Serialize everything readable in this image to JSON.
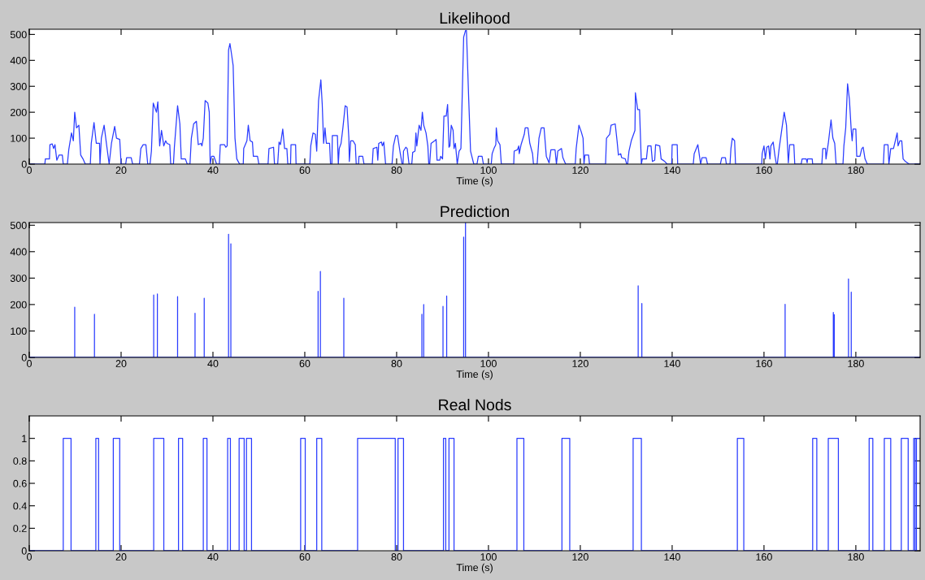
{
  "chart_data": [
    {
      "type": "line",
      "title": "Likelihood",
      "xlabel": "Time (s)",
      "xlim": [
        0,
        194
      ],
      "xticks": [
        0,
        20,
        40,
        60,
        80,
        100,
        120,
        140,
        160,
        180
      ],
      "ylim": [
        0,
        520
      ],
      "yticks": [
        0,
        100,
        200,
        300,
        400,
        500
      ],
      "grid": false,
      "series": [
        {
          "color": "#2a3cff",
          "x": [
            0,
            3.4,
            3.5,
            4.4,
            4.5,
            5.0,
            5.3,
            5.6,
            6.0,
            6.5,
            7.2,
            7.4,
            8.3,
            8.6,
            9.2,
            9.6,
            9.9,
            10.3,
            10.8,
            11.2,
            11.7,
            12.2,
            13.3,
            13.5,
            14.1,
            14.6,
            15.3,
            15.4,
            15.7,
            16.3,
            16.8,
            17.4,
            17.9,
            18.6,
            19.0,
            19.7,
            20.0,
            21.0,
            21.2,
            22.2,
            22.5,
            24.0,
            24.3,
            24.8,
            25.4,
            25.8,
            26.3,
            26.6,
            27.0,
            27.7,
            28.0,
            28.4,
            28.8,
            29.3,
            29.7,
            30.0,
            30.6,
            30.8,
            31.4,
            31.6,
            32.3,
            32.8,
            33.1,
            34.0,
            34.4,
            35.0,
            35.3,
            35.8,
            36.4,
            36.8,
            37.4,
            37.6,
            37.9,
            38.3,
            38.9,
            39.2,
            39.4,
            39.7,
            40.2,
            40.8,
            41.4,
            41.6,
            42.5,
            42.8,
            43.1,
            43.4,
            43.7,
            44.0,
            44.4,
            44.8,
            45.2,
            45.8,
            46.6,
            46.7,
            47.4,
            47.7,
            48.1,
            48.6,
            48.8,
            49.7,
            50.0,
            52.0,
            52.2,
            53.2,
            53.4,
            54.1,
            54.4,
            54.7,
            55.2,
            55.6,
            56.1,
            56.3,
            56.9,
            57.0,
            58.0,
            58.1,
            61.1,
            61.3,
            61.8,
            62.3,
            62.6,
            63.0,
            63.5,
            63.8,
            64.1,
            64.4,
            64.7,
            65.4,
            65.6,
            65.9,
            66.0,
            67.1,
            67.3,
            67.5,
            67.9,
            68.3,
            68.8,
            69.2,
            69.6,
            69.7,
            70.0,
            70.5,
            71.0,
            71.2,
            71.7,
            71.8,
            72.6,
            72.9,
            74.7,
            74.9,
            75.7,
            75.9,
            76.1,
            76.7,
            76.9,
            77.2,
            77.6,
            79.0,
            79.3,
            79.8,
            80.2,
            80.8,
            81.2,
            81.4,
            81.5,
            82.0,
            82.3,
            82.7,
            83.3,
            83.5,
            84.0,
            84.2,
            84.4,
            84.9,
            85.3,
            85.6,
            85.9,
            86.4,
            86.8,
            87.0,
            87.2,
            87.5,
            88.3,
            88.6,
            88.8,
            89.4,
            89.6,
            90.0,
            90.3,
            90.8,
            91.1,
            91.4,
            91.6,
            91.9,
            92.3,
            92.5,
            92.8,
            93.2,
            93.6,
            94.0,
            94.6,
            95.0,
            95.2,
            95.7,
            96.1,
            96.8,
            97.5,
            97.8,
            98.6,
            98.9,
            100.6,
            100.8,
            101.2,
            101.6,
            101.7,
            102.0,
            102.5,
            102.8,
            105.5,
            105.6,
            106.3,
            106.6,
            106.7,
            107.1,
            107.8,
            108.0,
            108.6,
            109.0,
            109.6,
            109.8,
            110.6,
            111.0,
            111.5,
            112.1,
            112.6,
            113.2,
            113.6,
            114.5,
            114.8,
            115.1,
            115.9,
            116.2,
            116.8,
            118.9,
            119.1,
            119.7,
            120.2,
            120.6,
            120.8,
            121.0,
            121.8,
            122.0,
            125.5,
            125.7,
            126.4,
            126.7,
            127.6,
            128.0,
            128.3,
            128.8,
            129.0,
            129.8,
            130.1,
            130.3,
            130.6,
            131.1,
            131.9,
            132.0,
            132.5,
            132.9,
            133.3,
            133.5,
            134.4,
            134.7,
            135.4,
            135.7,
            136.2,
            136.4,
            137.3,
            137.6,
            138.4,
            138.9,
            139.9,
            140.0,
            141.1,
            141.2,
            144.6,
            144.8,
            145.6,
            146.2,
            146.5,
            147.4,
            147.7,
            150.5,
            150.8,
            151.6,
            151.8,
            152.6,
            152.8,
            153.1,
            153.6,
            153.8,
            159.5,
            159.6,
            160.0,
            160.3,
            160.6,
            161.0,
            161.3,
            161.5,
            162.0,
            162.4,
            162.7,
            162.9,
            163.3,
            164.4,
            164.9,
            165.3,
            165.6,
            166.5,
            166.7,
            168.1,
            168.3,
            169.2,
            169.4,
            169.5,
            170.5,
            170.6,
            172.6,
            172.8,
            173.4,
            173.5,
            174.0,
            174.6,
            175.0,
            175.4,
            175.7,
            177.2,
            177.4,
            177.8,
            178.2,
            178.6,
            179.0,
            179.2,
            179.4,
            180.0,
            180.2,
            180.9,
            181.3,
            181.6,
            182.0,
            182.5,
            186.0,
            186.2,
            187.0,
            187.2,
            187.6,
            188.2,
            188.6,
            189.0,
            189.2,
            189.6,
            190.0,
            190.3,
            190.8,
            191.6,
            194.0
          ],
          "values": [
            0,
            0,
            20,
            20,
            75,
            78,
            60,
            75,
            15,
            35,
            35,
            0,
            0,
            55,
            120,
            90,
            200,
            140,
            150,
            35,
            20,
            0,
            0,
            80,
            160,
            80,
            80,
            0,
            100,
            150,
            80,
            0,
            80,
            145,
            100,
            95,
            0,
            0,
            25,
            25,
            0,
            0,
            60,
            75,
            75,
            0,
            0,
            50,
            235,
            200,
            240,
            70,
            130,
            70,
            90,
            80,
            75,
            0,
            0,
            65,
            225,
            155,
            20,
            20,
            0,
            0,
            100,
            155,
            165,
            75,
            80,
            70,
            100,
            245,
            235,
            200,
            0,
            30,
            30,
            0,
            0,
            75,
            75,
            65,
            70,
            440,
            465,
            430,
            380,
            100,
            20,
            0,
            0,
            60,
            90,
            150,
            90,
            85,
            30,
            30,
            0,
            0,
            60,
            65,
            0,
            0,
            85,
            75,
            135,
            60,
            60,
            0,
            0,
            75,
            75,
            0,
            0,
            70,
            120,
            115,
            50,
            245,
            325,
            230,
            80,
            140,
            80,
            80,
            0,
            0,
            110,
            110,
            0,
            60,
            80,
            140,
            225,
            220,
            100,
            10,
            90,
            90,
            75,
            0,
            0,
            30,
            30,
            0,
            0,
            60,
            65,
            15,
            80,
            85,
            70,
            85,
            0,
            0,
            70,
            110,
            110,
            40,
            0,
            0,
            50,
            65,
            60,
            0,
            0,
            45,
            50,
            120,
            70,
            150,
            130,
            200,
            150,
            120,
            70,
            0,
            0,
            80,
            90,
            95,
            15,
            15,
            30,
            20,
            185,
            185,
            230,
            65,
            70,
            150,
            130,
            60,
            80,
            0,
            50,
            60,
            490,
            515,
            515,
            250,
            50,
            0,
            0,
            30,
            30,
            0,
            0,
            40,
            60,
            75,
            140,
            90,
            75,
            0,
            0,
            50,
            55,
            70,
            40,
            75,
            115,
            140,
            140,
            80,
            40,
            0,
            0,
            100,
            140,
            140,
            30,
            5,
            55,
            55,
            0,
            50,
            60,
            25,
            0,
            0,
            60,
            150,
            125,
            100,
            0,
            35,
            35,
            0,
            0,
            100,
            115,
            150,
            155,
            90,
            35,
            40,
            25,
            20,
            0,
            0,
            50,
            90,
            130,
            275,
            210,
            210,
            0,
            20,
            20,
            70,
            70,
            10,
            15,
            75,
            70,
            20,
            10,
            0,
            0,
            75,
            75,
            0,
            0,
            40,
            75,
            0,
            25,
            25,
            0,
            0,
            25,
            25,
            0,
            0,
            60,
            100,
            90,
            0,
            0,
            40,
            70,
            20,
            65,
            70,
            20,
            70,
            85,
            30,
            0,
            0,
            60,
            200,
            150,
            5,
            75,
            75,
            0,
            0,
            20,
            20,
            5,
            20,
            20,
            0,
            0,
            60,
            60,
            20,
            80,
            170,
            100,
            80,
            0,
            0,
            70,
            140,
            310,
            250,
            130,
            90,
            135,
            135,
            30,
            30,
            60,
            65,
            20,
            0,
            0,
            75,
            75,
            0,
            60,
            60,
            90,
            120,
            70,
            90,
            90,
            20,
            10,
            0,
            0
          ]
        }
      ]
    },
    {
      "type": "line",
      "title": "Prediction",
      "xlabel": "Time (s)",
      "xlim": [
        0,
        194
      ],
      "xticks": [
        0,
        20,
        40,
        60,
        80,
        100,
        120,
        140,
        160,
        180
      ],
      "ylim": [
        0,
        510
      ],
      "yticks": [
        0,
        100,
        200,
        300,
        400,
        500
      ],
      "grid": false,
      "series": [
        {
          "color": "#2a3cff",
          "x": [
            0,
            9.9,
            9.9,
            9.9,
            14.2,
            14.2,
            14.2,
            27.1,
            27.1,
            27.1,
            27.9,
            27.9,
            27.9,
            32.3,
            32.3,
            32.3,
            36.1,
            36.1,
            36.1,
            38.1,
            38.1,
            38.1,
            43.4,
            43.4,
            43.4,
            43.9,
            43.9,
            43.9,
            62.9,
            62.9,
            62.9,
            63.4,
            63.4,
            63.4,
            68.5,
            68.5,
            68.5,
            85.5,
            85.5,
            85.5,
            85.9,
            85.9,
            85.9,
            90.1,
            90.1,
            90.1,
            90.9,
            90.9,
            90.9,
            94.6,
            94.6,
            94.6,
            95.0,
            95.0,
            95.0,
            132.6,
            132.6,
            132.6,
            133.4,
            133.4,
            133.4,
            164.6,
            164.6,
            164.6,
            175.1,
            175.1,
            175.1,
            175.3,
            175.3,
            175.3,
            178.4,
            178.4,
            178.4,
            179.0,
            179.0,
            179.0,
            194
          ],
          "values": [
            0,
            0,
            190,
            0,
            0,
            163,
            0,
            0,
            236,
            0,
            0,
            240,
            0,
            0,
            230,
            0,
            0,
            167,
            0,
            0,
            224,
            0,
            0,
            466,
            0,
            0,
            430,
            0,
            0,
            250,
            0,
            0,
            325,
            0,
            0,
            224,
            0,
            0,
            163,
            0,
            0,
            200,
            0,
            0,
            193,
            0,
            0,
            232,
            0,
            0,
            455,
            0,
            0,
            510,
            0,
            0,
            271,
            0,
            0,
            204,
            0,
            0,
            201,
            0,
            0,
            170,
            0,
            0,
            162,
            0,
            0,
            297,
            0,
            0,
            247,
            0,
            0
          ]
        }
      ]
    },
    {
      "type": "step",
      "title": "Real Nods",
      "xlabel": "Time (s)",
      "xlim": [
        0,
        194
      ],
      "xticks": [
        0,
        20,
        40,
        60,
        80,
        100,
        120,
        140,
        160,
        180
      ],
      "ylim": [
        0,
        1.2
      ],
      "yticks": [
        0,
        0.2,
        0.4,
        0.6,
        0.8,
        1
      ],
      "grid": false,
      "series": [
        {
          "color": "#2a3cff",
          "x": [
            0,
            7.4,
            9.1,
            14.5,
            15.1,
            18.3,
            19.7,
            27.1,
            29.3,
            32.5,
            33.4,
            37.9,
            38.7,
            43.2,
            43.8,
            45.7,
            46.8,
            47.3,
            48.4,
            59.1,
            60.1,
            62.6,
            63.7,
            71.5,
            79.7,
            80.3,
            81.5,
            90.2,
            90.7,
            91.4,
            92.5,
            106.2,
            107.7,
            116.0,
            117.7,
            131.5,
            133.3,
            154.2,
            155.6,
            170.6,
            171.5,
            174.0,
            176.2,
            182.9,
            183.7,
            186.2,
            187.6,
            189.9,
            191.4,
            192.6,
            192.9,
            193.2,
            194
          ],
          "values": [
            0,
            1,
            0,
            1,
            0,
            1,
            0,
            1,
            0,
            1,
            0,
            1,
            0,
            1,
            0,
            1,
            0,
            1,
            0,
            1,
            0,
            1,
            0,
            1,
            0,
            1,
            0,
            1,
            0,
            1,
            0,
            1,
            0,
            1,
            0,
            1,
            0,
            1,
            0,
            1,
            0,
            1,
            0,
            1,
            0,
            1,
            0,
            1,
            0,
            1,
            0,
            1,
            1
          ]
        }
      ]
    }
  ]
}
